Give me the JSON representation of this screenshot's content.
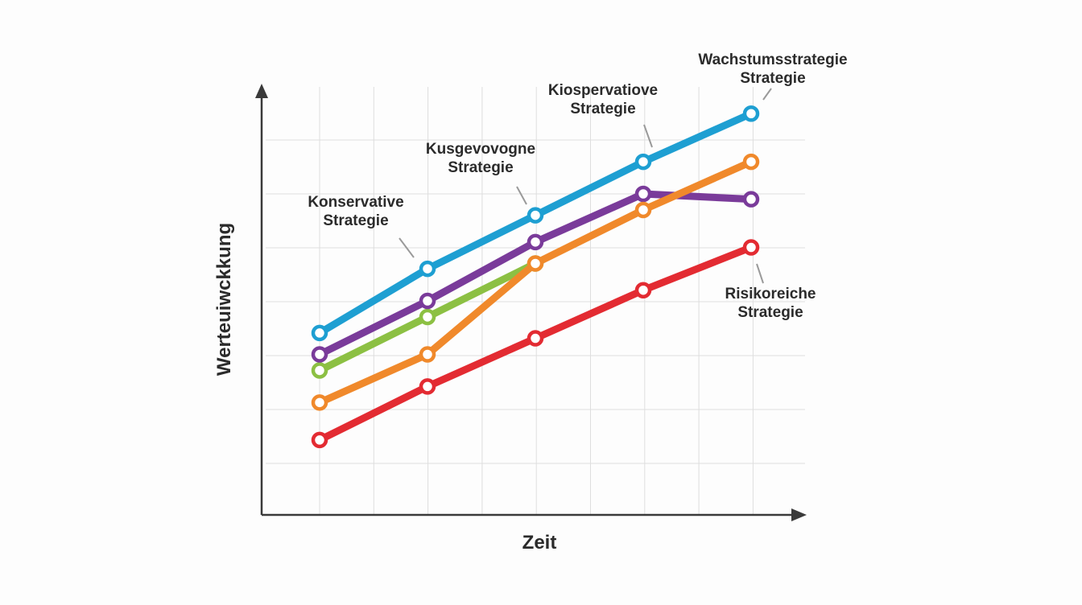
{
  "chart_data": {
    "type": "line",
    "title": "",
    "xlabel": "Zeit",
    "ylabel": "Werteuiwckkung",
    "x": [
      1,
      2,
      3,
      4,
      5
    ],
    "xlim": [
      0.5,
      5.5
    ],
    "ylim": [
      0,
      8
    ],
    "grid": true,
    "series": [
      {
        "color": "#1e9fd2",
        "values": [
          3.4,
          4.6,
          5.6,
          6.6,
          7.5
        ]
      },
      {
        "color": "#f0892b",
        "values": [
          2.1,
          3.0,
          4.7,
          5.7,
          6.6
        ]
      },
      {
        "color": "#7a3b9a",
        "values": [
          3.0,
          4.0,
          5.1,
          6.0,
          5.9
        ]
      },
      {
        "color": "#8cc043",
        "values": [
          2.7,
          3.7,
          4.7,
          null,
          null
        ]
      },
      {
        "color": "#e32b32",
        "values": [
          1.4,
          2.4,
          3.3,
          4.2,
          5.0
        ]
      }
    ],
    "annotations": [
      {
        "lines": [
          "Konservative",
          "Strategie"
        ],
        "target_series": 0,
        "target_index": 1
      },
      {
        "lines": [
          "Kusgevovogne",
          "Strategie"
        ],
        "target_series": 0,
        "target_index": 2
      },
      {
        "lines": [
          "Kiospervatiove",
          "Strategie"
        ],
        "target_series": 0,
        "target_index": 3
      },
      {
        "lines": [
          "Wachstumsstrategie",
          "Strategie"
        ],
        "target_series": 0,
        "target_index": 4
      },
      {
        "lines": [
          "Risikoreiche",
          "Strategie"
        ],
        "target_series": 4,
        "target_index": 4
      }
    ]
  }
}
